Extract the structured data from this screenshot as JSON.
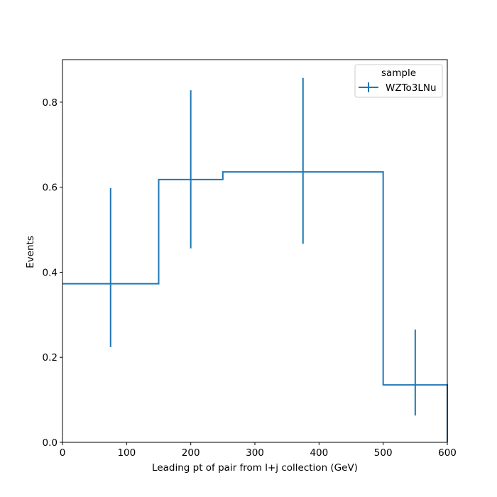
{
  "chart_data": {
    "type": "histogram",
    "title": "",
    "xlabel": "Leading pt of pair from l+j collection (GeV)",
    "ylabel": "Events",
    "xlim": [
      0,
      600
    ],
    "ylim": [
      0,
      0.9
    ],
    "xticks": [
      "0",
      "100",
      "200",
      "300",
      "400",
      "500",
      "600"
    ],
    "yticks": [
      "0.0",
      "0.2",
      "0.4",
      "0.6",
      "0.8"
    ],
    "grid": false,
    "legend": {
      "title": "sample",
      "placement": "top-right"
    },
    "bin_edges": [
      0,
      150,
      250,
      500,
      600
    ],
    "series": [
      {
        "name": "WZTo3LNu",
        "color": "#1f77b4",
        "values": [
          0.373,
          0.618,
          0.636,
          0.135
        ],
        "errors_low": [
          0.149,
          0.162,
          0.169,
          0.072
        ],
        "errors_high": [
          0.225,
          0.21,
          0.221,
          0.13
        ]
      }
    ]
  }
}
